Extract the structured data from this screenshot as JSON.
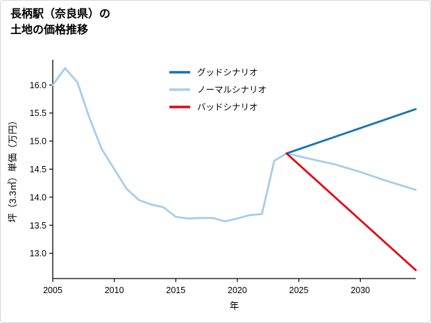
{
  "chart_data": {
    "type": "line",
    "title": "長柄駅（奈良県）の土地の価格推移",
    "title_lines": [
      "長柄駅（奈良県）の",
      "土地の価格推移"
    ],
    "xlabel": "年",
    "ylabel": "坪（3.3㎡）単価（万円）",
    "xlim": [
      2005,
      2034.5
    ],
    "ylim": [
      12.55,
      16.45
    ],
    "xticks": [
      2005,
      2010,
      2015,
      2020,
      2025,
      2030
    ],
    "yticks": [
      13.0,
      13.5,
      14.0,
      14.5,
      15.0,
      15.5,
      16.0
    ],
    "grid": false,
    "legend_position": "upper-center-inside",
    "legend_order": [
      "グッドシナリオ",
      "ノーマルシナリオ",
      "バッドシナリオ"
    ],
    "series": [
      {
        "id": "normal",
        "name": "ノーマルシナリオ",
        "color": "#a5cdec",
        "x": [
          2005,
          2006,
          2007,
          2008,
          2009,
          2010,
          2011,
          2012,
          2013,
          2014,
          2015,
          2016,
          2017,
          2018,
          2019,
          2020,
          2021,
          2022,
          2023,
          2024,
          2026,
          2028,
          2030,
          2032,
          2034.5
        ],
        "y": [
          16.0,
          16.3,
          16.05,
          15.4,
          14.85,
          14.5,
          14.15,
          13.95,
          13.87,
          13.82,
          13.65,
          13.62,
          13.63,
          13.63,
          13.57,
          13.62,
          13.68,
          13.7,
          14.65,
          14.78,
          14.68,
          14.58,
          14.45,
          14.3,
          14.13
        ]
      },
      {
        "id": "good",
        "name": "グッドシナリオ",
        "color": "#1371b9",
        "x": [
          2024,
          2034.5
        ],
        "y": [
          14.78,
          15.57
        ]
      },
      {
        "id": "bad",
        "name": "バッドシナリオ",
        "color": "#e8000b",
        "x": [
          2024,
          2034.5
        ],
        "y": [
          14.78,
          12.7
        ]
      }
    ]
  }
}
